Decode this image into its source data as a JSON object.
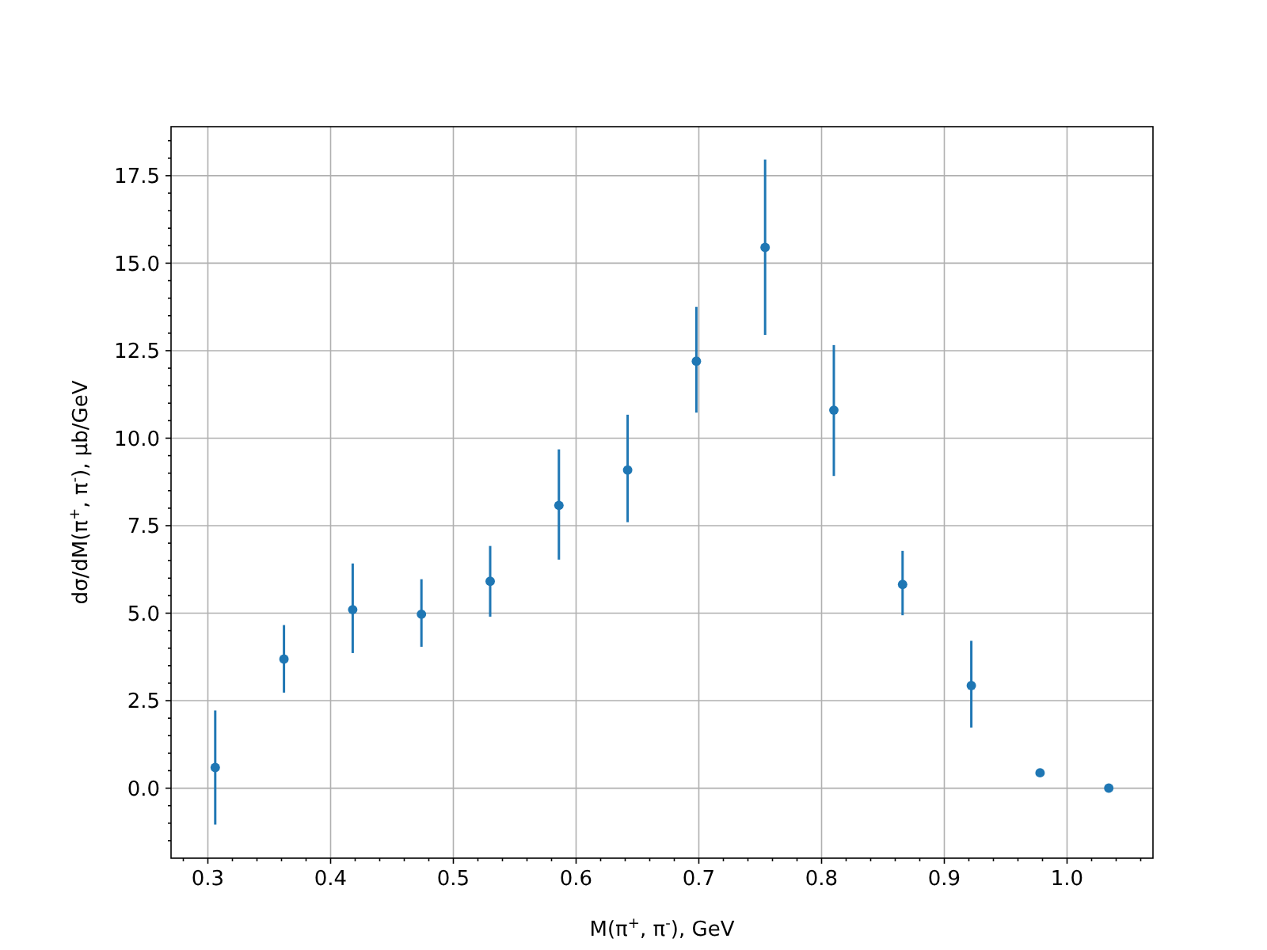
{
  "chart_data": {
    "type": "scatter",
    "xlabel": "M(π$^{+}$, π$^{-}$), GeV",
    "ylabel": "dσ/dM(π$^{+}$, π$^{-}$), μb/GeV",
    "x": [
      0.306,
      0.362,
      0.418,
      0.474,
      0.53,
      0.586,
      0.642,
      0.698,
      0.754,
      0.81,
      0.866,
      0.922,
      0.978,
      1.034
    ],
    "series": [
      {
        "color": "#1f77b4",
        "values": [
          0.59,
          3.69,
          5.1,
          4.97,
          5.91,
          8.08,
          9.09,
          12.2,
          15.45,
          10.8,
          5.82,
          2.93,
          0.44,
          0.0
        ],
        "errors": [
          [
            -1.04,
            2.22
          ],
          [
            2.73,
            4.66
          ],
          [
            3.86,
            6.42
          ],
          [
            4.04,
            5.97
          ],
          [
            4.9,
            6.92
          ],
          [
            6.53,
            9.68
          ],
          [
            7.6,
            10.67
          ],
          [
            10.73,
            13.75
          ],
          [
            12.95,
            17.96
          ],
          [
            8.92,
            12.66
          ],
          [
            4.94,
            6.78
          ],
          [
            1.73,
            4.21
          ],
          null,
          null
        ]
      }
    ],
    "xlim": [
      0.27,
      1.07
    ],
    "ylim": [
      -2.0,
      18.9
    ],
    "xticks": [
      {
        "value": 0.28,
        "label": null
      },
      {
        "value": 0.3,
        "label": "0.3"
      },
      {
        "value": 0.32,
        "label": null
      },
      {
        "value": 0.34,
        "label": null
      },
      {
        "value": 0.36,
        "label": null
      },
      {
        "value": 0.38,
        "label": null
      },
      {
        "value": 0.4,
        "label": "0.4"
      },
      {
        "value": 0.42,
        "label": null
      },
      {
        "value": 0.44,
        "label": null
      },
      {
        "value": 0.46,
        "label": null
      },
      {
        "value": 0.48,
        "label": null
      },
      {
        "value": 0.5,
        "label": "0.5"
      },
      {
        "value": 0.52,
        "label": null
      },
      {
        "value": 0.54,
        "label": null
      },
      {
        "value": 0.56,
        "label": null
      },
      {
        "value": 0.58,
        "label": null
      },
      {
        "value": 0.6,
        "label": "0.6"
      },
      {
        "value": 0.62,
        "label": null
      },
      {
        "value": 0.64,
        "label": null
      },
      {
        "value": 0.66,
        "label": null
      },
      {
        "value": 0.68,
        "label": null
      },
      {
        "value": 0.7,
        "label": "0.7"
      },
      {
        "value": 0.72,
        "label": null
      },
      {
        "value": 0.74,
        "label": null
      },
      {
        "value": 0.76,
        "label": null
      },
      {
        "value": 0.78,
        "label": null
      },
      {
        "value": 0.8,
        "label": "0.8"
      },
      {
        "value": 0.82,
        "label": null
      },
      {
        "value": 0.84,
        "label": null
      },
      {
        "value": 0.86,
        "label": null
      },
      {
        "value": 0.88,
        "label": null
      },
      {
        "value": 0.9,
        "label": "0.9"
      },
      {
        "value": 0.92,
        "label": null
      },
      {
        "value": 0.94,
        "label": null
      },
      {
        "value": 0.96,
        "label": null
      },
      {
        "value": 0.98,
        "label": null
      },
      {
        "value": 1.0,
        "label": "1.0"
      },
      {
        "value": 1.02,
        "label": null
      },
      {
        "value": 1.04,
        "label": null
      },
      {
        "value": 1.06,
        "label": null
      }
    ],
    "yticks": [
      {
        "value": -1.5,
        "label": null
      },
      {
        "value": -1.0,
        "label": null
      },
      {
        "value": -0.5,
        "label": null
      },
      {
        "value": 0,
        "label": "0.0"
      },
      {
        "value": 0.5,
        "label": null
      },
      {
        "value": 1.0,
        "label": null
      },
      {
        "value": 1.5,
        "label": null
      },
      {
        "value": 2.0,
        "label": null
      },
      {
        "value": 2.5,
        "label": "2.5"
      },
      {
        "value": 3.0,
        "label": null
      },
      {
        "value": 3.5,
        "label": null
      },
      {
        "value": 4.0,
        "label": null
      },
      {
        "value": 4.5,
        "label": null
      },
      {
        "value": 5,
        "label": "5.0"
      },
      {
        "value": 5.5,
        "label": null
      },
      {
        "value": 6.0,
        "label": null
      },
      {
        "value": 6.5,
        "label": null
      },
      {
        "value": 7.0,
        "label": null
      },
      {
        "value": 7.5,
        "label": "7.5"
      },
      {
        "value": 8.0,
        "label": null
      },
      {
        "value": 8.5,
        "label": null
      },
      {
        "value": 9.0,
        "label": null
      },
      {
        "value": 9.5,
        "label": null
      },
      {
        "value": 10,
        "label": "10.0"
      },
      {
        "value": 10.5,
        "label": null
      },
      {
        "value": 11.0,
        "label": null
      },
      {
        "value": 11.5,
        "label": null
      },
      {
        "value": 12.0,
        "label": null
      },
      {
        "value": 12.5,
        "label": "12.5"
      },
      {
        "value": 13.0,
        "label": null
      },
      {
        "value": 13.5,
        "label": null
      },
      {
        "value": 14.0,
        "label": null
      },
      {
        "value": 14.5,
        "label": null
      },
      {
        "value": 15,
        "label": "15.0"
      },
      {
        "value": 15.5,
        "label": null
      },
      {
        "value": 16.0,
        "label": null
      },
      {
        "value": 16.5,
        "label": null
      },
      {
        "value": 17.0,
        "label": null
      },
      {
        "value": 17.5,
        "label": "17.5"
      },
      {
        "value": 18.0,
        "label": null
      },
      {
        "value": 18.5,
        "label": null
      }
    ],
    "grid": true,
    "marker": "circle"
  }
}
